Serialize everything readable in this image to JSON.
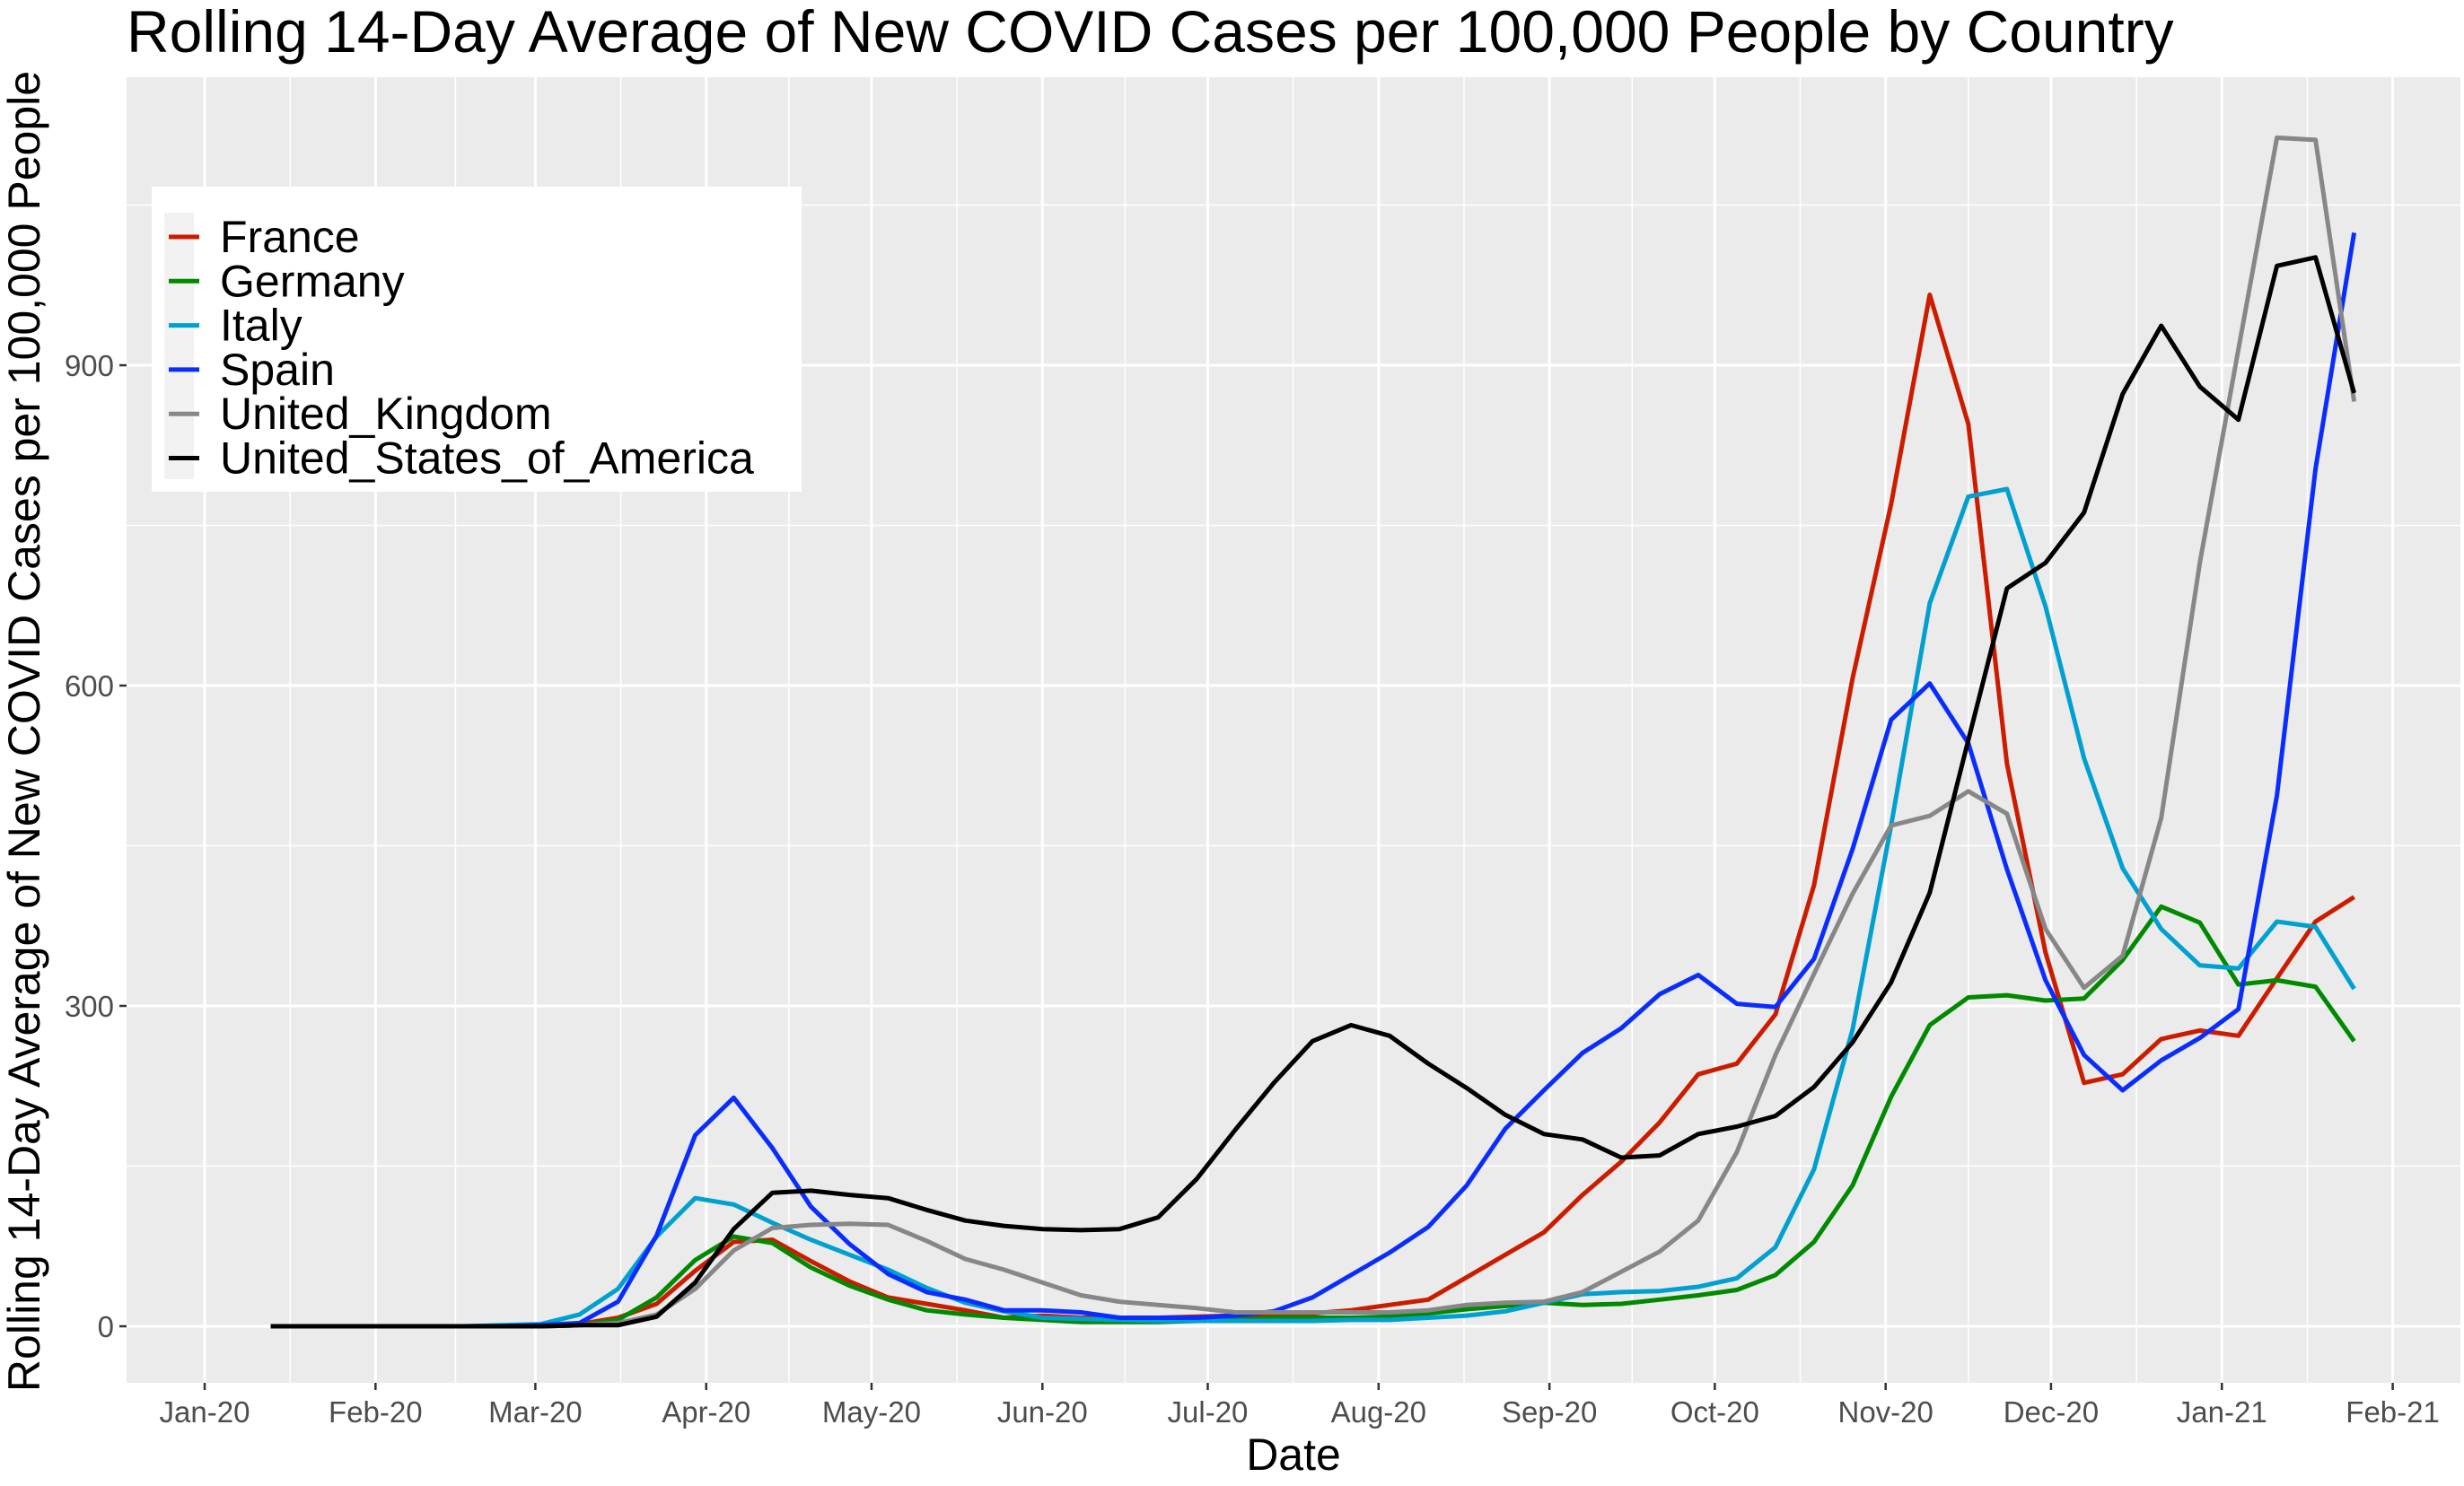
{
  "chart_data": {
    "type": "line",
    "title": "Rolling 14-Day Average of New COVID Cases per 100,000 People by Country",
    "xlabel": "Date",
    "ylabel": "Rolling 14-Day Average of New COVID Cases per 100,000 People",
    "x_start_date": "2020-01-13",
    "x_step_days": 7,
    "x_tick_labels": [
      "Jan-20",
      "Feb-20",
      "Mar-20",
      "Apr-20",
      "May-20",
      "Jun-20",
      "Jul-20",
      "Aug-20",
      "Sep-20",
      "Oct-20",
      "Nov-20",
      "Dec-20",
      "Jan-21",
      "Feb-21"
    ],
    "x_tick_dates": [
      "2020-01-01",
      "2020-02-01",
      "2020-03-01",
      "2020-04-01",
      "2020-05-01",
      "2020-06-01",
      "2020-07-01",
      "2020-08-01",
      "2020-09-01",
      "2020-10-01",
      "2020-11-01",
      "2020-12-01",
      "2021-01-01",
      "2021-02-01"
    ],
    "xlim": [
      "2019-12-15",
      "2021-02-12"
    ],
    "y_ticks": [
      0,
      300,
      600,
      900
    ],
    "y_minor_ticks": [
      150,
      450,
      750,
      1050
    ],
    "ylim": [
      -55,
      1170
    ],
    "grid": true,
    "legend_position": "top-left",
    "series": [
      {
        "name": "France",
        "color": "#cc1c00",
        "values": [
          0,
          0,
          0,
          0,
          0,
          0,
          0,
          1,
          2,
          8,
          21,
          52,
          79,
          81,
          61,
          42,
          27,
          21,
          15,
          8,
          10,
          8,
          8,
          8,
          9,
          10,
          11,
          12,
          15,
          20,
          25,
          46,
          67,
          88,
          123,
          154,
          191,
          236,
          246,
          292,
          413,
          607,
          770,
          966,
          845,
          527,
          350,
          228,
          236,
          269,
          277,
          272,
          326,
          379,
          402
        ]
      },
      {
        "name": "Germany",
        "color": "#008a00",
        "values": [
          0,
          0,
          0,
          0,
          0,
          0,
          0,
          0,
          1,
          6,
          27,
          62,
          84,
          78,
          55,
          38,
          25,
          15,
          11,
          8,
          6,
          4,
          4,
          4,
          5,
          6,
          8,
          8,
          8,
          9,
          12,
          16,
          19,
          22,
          20,
          21,
          25,
          29,
          34,
          48,
          79,
          132,
          215,
          282,
          308,
          310,
          305,
          307,
          343,
          393,
          378,
          320,
          324,
          318,
          267
        ]
      },
      {
        "name": "Italy",
        "color": "#00a0d0",
        "values": [
          0,
          0,
          0,
          0,
          0,
          0,
          1,
          2,
          11,
          35,
          84,
          120,
          114,
          97,
          81,
          67,
          53,
          36,
          22,
          14,
          8,
          7,
          6,
          5,
          5,
          5,
          5,
          5,
          6,
          6,
          8,
          10,
          14,
          22,
          30,
          32,
          33,
          37,
          45,
          74,
          147,
          278,
          469,
          677,
          777,
          784,
          674,
          532,
          429,
          372,
          338,
          335,
          379,
          374,
          316
        ]
      },
      {
        "name": "Spain",
        "color": "#0a2dff",
        "values": [
          0,
          0,
          0,
          0,
          0,
          0,
          0,
          1,
          3,
          23,
          85,
          179,
          214,
          167,
          112,
          77,
          49,
          32,
          25,
          15,
          15,
          13,
          8,
          8,
          8,
          10,
          14,
          27,
          48,
          69,
          93,
          132,
          185,
          221,
          256,
          279,
          311,
          329,
          302,
          299,
          344,
          447,
          568,
          602,
          546,
          428,
          324,
          254,
          221,
          249,
          270,
          297,
          497,
          803,
          1024
        ]
      },
      {
        "name": "United_Kingdom",
        "color": "#878787",
        "values": [
          0,
          0,
          0,
          0,
          0,
          0,
          0,
          0,
          1,
          3,
          11,
          35,
          71,
          92,
          95,
          96,
          95,
          80,
          63,
          53,
          41,
          29,
          23,
          20,
          17,
          13,
          13,
          13,
          13,
          13,
          15,
          20,
          22,
          23,
          32,
          51,
          70,
          99,
          163,
          254,
          330,
          405,
          469,
          478,
          501,
          480,
          372,
          317,
          347,
          476,
          715,
          915,
          1113,
          1111,
          866
        ]
      },
      {
        "name": "United_States_of_America",
        "color": "#000000",
        "values": [
          0,
          0,
          0,
          0,
          0,
          0,
          0,
          0,
          1,
          1,
          9,
          41,
          91,
          125,
          127,
          123,
          120,
          109,
          99,
          94,
          91,
          90,
          91,
          102,
          138,
          184,
          228,
          267,
          282,
          272,
          246,
          223,
          198,
          180,
          175,
          158,
          160,
          180,
          187,
          197,
          224,
          266,
          322,
          406,
          549,
          691,
          715,
          762,
          873,
          937,
          880,
          849,
          993,
          1001,
          874
        ]
      }
    ]
  }
}
